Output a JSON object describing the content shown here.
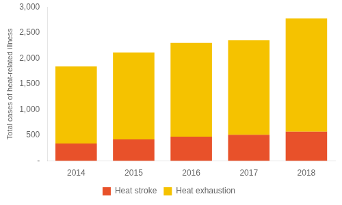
{
  "chart_data": {
    "type": "bar",
    "stacked": true,
    "categories": [
      "2014",
      "2015",
      "2016",
      "2017",
      "2018"
    ],
    "series": [
      {
        "name": "Heat stroke",
        "color": "#E8512A",
        "values": [
          340,
          420,
          475,
          510,
          570
        ]
      },
      {
        "name": "Heat exhaustion",
        "color": "#F5C200",
        "values": [
          1500,
          1695,
          1825,
          1840,
          2205
        ]
      }
    ],
    "ylabel": "Total cases of heat-related illness",
    "ylim": [
      0,
      3000
    ],
    "yticks": [
      {
        "value": 0,
        "label": "-"
      },
      500,
      {
        "value": 1000,
        "label": "1,000"
      },
      {
        "value": 1500,
        "label": "1,500"
      },
      {
        "value": 2000,
        "label": "2,000"
      },
      {
        "value": 2500,
        "label": "2,500"
      },
      {
        "value": 3000,
        "label": "3,000"
      }
    ],
    "grid": false,
    "legend": "bottom"
  }
}
